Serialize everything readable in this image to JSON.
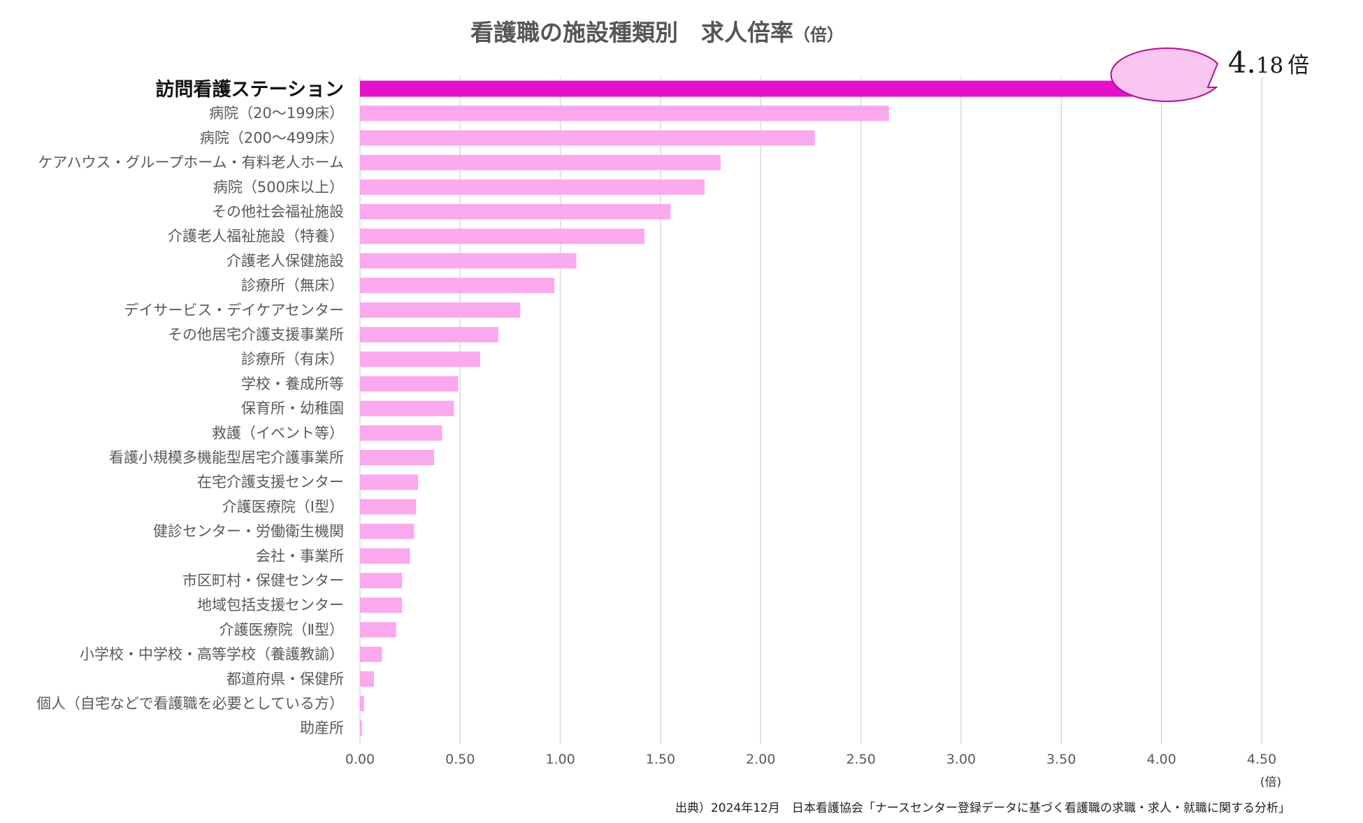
{
  "title": {
    "main": "看護職の施設種類別　求人倍率",
    "unit": "（倍）"
  },
  "colors": {
    "highlight": "#E511C8",
    "bar": "#FAA9EF",
    "grid": "#D9D9D9",
    "callout_fill": "#F8C6F0",
    "callout_stroke": "#B0128F"
  },
  "callout": {
    "int_part": "4.",
    "dec_part": "18",
    "unit": "倍"
  },
  "chart_data": {
    "type": "bar",
    "orientation": "horizontal",
    "title": "看護職の施設種類別　求人倍率（倍）",
    "xlabel": "(倍)",
    "ylabel": "",
    "xlim": [
      0,
      4.5
    ],
    "grid": true,
    "highlight_index": 0,
    "categories": [
      "訪問看護ステーション",
      "病院（20〜199床）",
      "病院（200〜499床）",
      "ケアハウス・グループホーム・有料老人ホーム",
      "病院（500床以上）",
      "その他社会福祉施設",
      "介護老人福祉施設（特養）",
      "介護老人保健施設",
      "診療所（無床）",
      "デイサービス・デイケアセンター",
      "その他居宅介護支援事業所",
      "診療所（有床）",
      "学校・養成所等",
      "保育所・幼稚園",
      "救護（イベント等）",
      "看護小規模多機能型居宅介護事業所",
      "在宅介護支援センター",
      "介護医療院（Ⅰ型）",
      "健診センター・労働衛生機関",
      "会社・事業所",
      "市区町村・保健センター",
      "地域包括支援センター",
      "介護医療院（Ⅱ型）",
      "小学校・中学校・高等学校（養護教諭）",
      "都道府県・保健所",
      "個人（自宅などで看護職を必要としている方）",
      "助産所"
    ],
    "values": [
      4.18,
      2.64,
      2.27,
      1.8,
      1.72,
      1.55,
      1.42,
      1.08,
      0.97,
      0.8,
      0.69,
      0.6,
      0.49,
      0.47,
      0.41,
      0.37,
      0.29,
      0.28,
      0.27,
      0.25,
      0.21,
      0.21,
      0.18,
      0.11,
      0.07,
      0.02,
      0.01
    ],
    "ticks": [
      0,
      0.5,
      1.0,
      1.5,
      2.0,
      2.5,
      3.0,
      3.5,
      4.0,
      4.5
    ],
    "tick_labels": [
      "0.00",
      "0.50",
      "1.00",
      "1.50",
      "2.00",
      "2.50",
      "3.00",
      "3.50",
      "4.00",
      "4.50"
    ]
  },
  "source": "出典）2024年12月　日本看護協会「ナースセンター登録データに基づく看護職の求職・求人・就職に関する分析」"
}
